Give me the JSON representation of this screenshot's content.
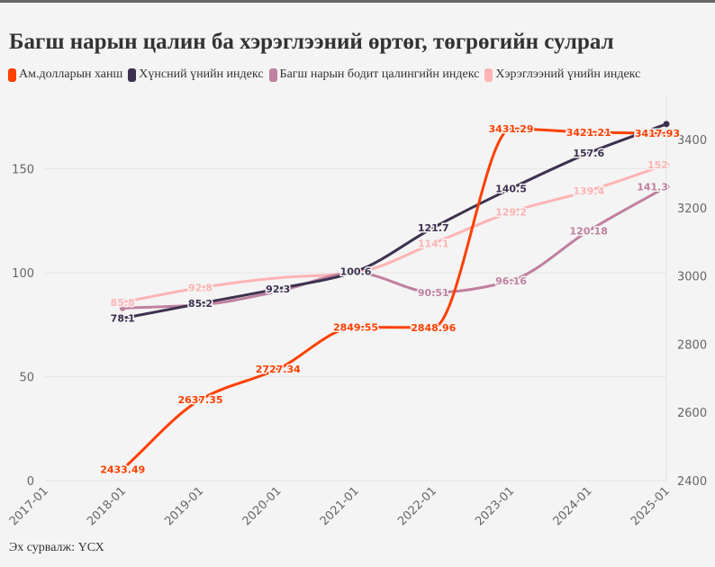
{
  "title": "Багш нарын цалин ба хэрэглээний өртөг, төгрөгийн сулрал",
  "source": "Эх сурвалж: ҮСХ",
  "chart_data": {
    "type": "line",
    "x": [
      "2017-01",
      "2018-01",
      "2019-01",
      "2020-01",
      "2021-01",
      "2022-01",
      "2023-01",
      "2024-01",
      "2025-01"
    ],
    "left_axis": {
      "range": [
        0,
        175
      ],
      "ticks": [
        0,
        50,
        100,
        150
      ]
    },
    "right_axis": {
      "range": [
        2400,
        3500
      ],
      "ticks": [
        2400,
        2600,
        2800,
        3000,
        3200,
        3400
      ]
    },
    "grid": true,
    "legend": "top-left",
    "series": [
      {
        "name": "Ам.долларын ханш",
        "axis": "right",
        "color": "#ff4000",
        "values": [
          null,
          2433.49,
          2637.35,
          2727.34,
          2849.55,
          2848.96,
          3431.29,
          3421.21,
          3417.93
        ],
        "labels": [
          null,
          "2433.49",
          "2637.35",
          "2727.34",
          "2849.55",
          "2848.96",
          "3431.29",
          "3421.21",
          "3417.93"
        ]
      },
      {
        "name": "Хүнсний үнийн индекс",
        "axis": "left",
        "color": "#3d3150",
        "values": [
          null,
          78.1,
          85.2,
          92.3,
          100.6,
          121.7,
          140.5,
          157.6,
          171.5
        ],
        "labels": [
          null,
          "78.1",
          "85.2",
          "92.3",
          "100.6",
          "121.7",
          "140.5",
          "157.6",
          null
        ]
      },
      {
        "name": "Багш нарын бодит цалингийн индекс",
        "axis": "left",
        "color": "#c0809f",
        "values": [
          null,
          83,
          84.5,
          91,
          100,
          90.51,
          96.16,
          120.18,
          141.3
        ],
        "labels": [
          null,
          null,
          null,
          null,
          null,
          "90.51",
          "96.16",
          "120.18",
          "141.3"
        ]
      },
      {
        "name": "Хэрэглээний үнийн индекс",
        "axis": "left",
        "color": "#ffb3b3",
        "values": [
          null,
          85.8,
          92.8,
          97.5,
          100,
          114.1,
          129.2,
          139.4,
          152
        ],
        "labels": [
          null,
          "85.8",
          "92.8",
          null,
          null,
          "114.1",
          "129.2",
          "139.4",
          "152"
        ]
      }
    ]
  }
}
